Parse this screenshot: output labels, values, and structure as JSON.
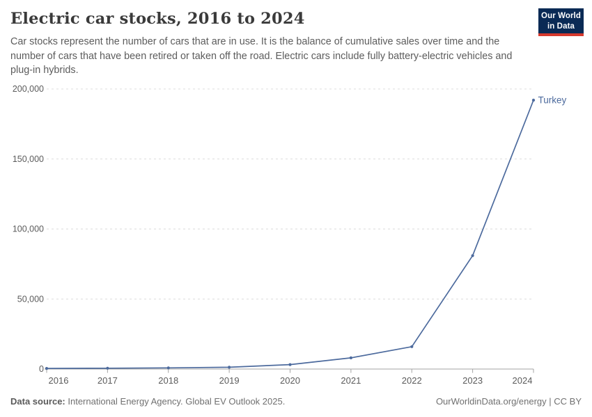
{
  "header": {
    "title": "Electric car stocks, 2016 to 2024",
    "subtitle": "Car stocks represent the number of cars that are in use. It is the balance of cumulative sales over time and the number of cars that have been retired or taken off the road. Electric cars include fully battery-electric vehicles and plug-in hybrids.",
    "logo": {
      "line1": "Our World",
      "line2": "in Data",
      "bg_color": "#0a2a55",
      "accent_color": "#d6392e"
    }
  },
  "chart_data": {
    "type": "line",
    "title": "Electric car stocks, 2016 to 2024",
    "x": [
      "2016",
      "2017",
      "2018",
      "2019",
      "2020",
      "2021",
      "2022",
      "2023",
      "2024"
    ],
    "series": [
      {
        "name": "Turkey",
        "color": "#4c6a9d",
        "values": [
          450,
          600,
          850,
          1300,
          3200,
          8000,
          16000,
          81000,
          192000
        ]
      }
    ],
    "ylim": [
      0,
      200000
    ],
    "yticks": [
      {
        "value": 0,
        "label": "0"
      },
      {
        "value": 50000,
        "label": "50,000"
      },
      {
        "value": 100000,
        "label": "100,000"
      },
      {
        "value": 150000,
        "label": "150,000"
      },
      {
        "value": 200000,
        "label": "200,000"
      }
    ],
    "grid": "horizontal-dashed",
    "legend_position": "end-of-line-label",
    "end_label": "Turkey",
    "colors": {
      "grid": "#dcdcdc",
      "axis": "#a3a3a3",
      "tick_text": "#5b5b5b"
    },
    "marker": "point"
  },
  "footer": {
    "source_label": "Data source:",
    "source_text": " International Energy Agency. Global EV Outlook 2025.",
    "credit": "OurWorldinData.org/energy | CC BY"
  }
}
